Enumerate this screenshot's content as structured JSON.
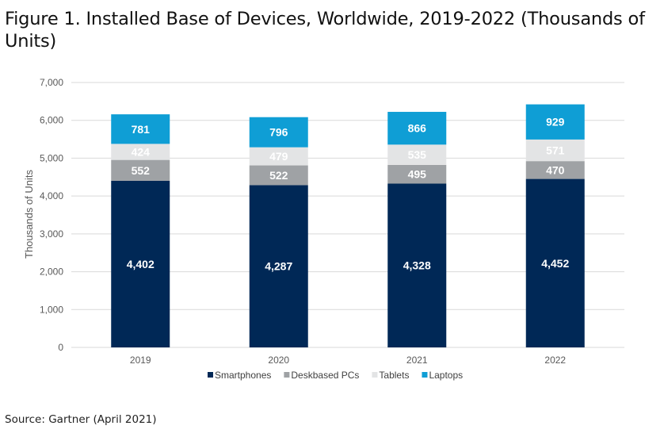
{
  "figure": {
    "title": "Figure 1. Installed Base of Devices, Worldwide, 2019-2022 (Thousands of Units)",
    "source": "Source: Gartner (April 2021)"
  },
  "chart_data": {
    "type": "bar",
    "stacked": true,
    "title": "",
    "xlabel": "",
    "ylabel": "Thousands of Units",
    "categories": [
      "2019",
      "2020",
      "2021",
      "2022"
    ],
    "ylim": [
      0,
      7000
    ],
    "yticks": [
      0,
      1000,
      2000,
      3000,
      4000,
      5000,
      6000,
      7000
    ],
    "ytick_labels": [
      "0",
      "1,000",
      "2,000",
      "3,000",
      "4,000",
      "5,000",
      "6,000",
      "7,000"
    ],
    "grid": true,
    "legend_position": "bottom",
    "series": [
      {
        "name": "Smartphones",
        "values": [
          4402,
          4287,
          4328,
          4452
        ],
        "labels": [
          "4,402",
          "4,287",
          "4,328",
          "4,452"
        ],
        "color": "#002856",
        "label_color": "#ffffff"
      },
      {
        "name": "Deskbased PCs",
        "values": [
          552,
          522,
          495,
          470
        ],
        "labels": [
          "552",
          "522",
          "495",
          "470"
        ],
        "color": "#9fa2a5",
        "label_color": "#ffffff"
      },
      {
        "name": "Tablets",
        "values": [
          424,
          479,
          535,
          571
        ],
        "labels": [
          "424",
          "479",
          "535",
          "571"
        ],
        "color": "#e3e4e5",
        "label_color": "#ffffff"
      },
      {
        "name": "Laptops",
        "values": [
          781,
          796,
          866,
          929
        ],
        "labels": [
          "781",
          "796",
          "866",
          "929"
        ],
        "color": "#0f9ed5",
        "label_color": "#ffffff"
      }
    ]
  }
}
